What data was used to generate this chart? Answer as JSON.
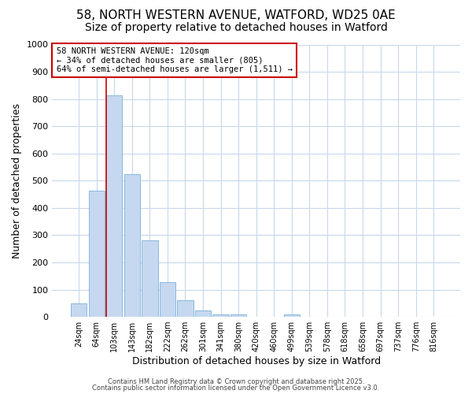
{
  "title_line1": "58, NORTH WESTERN AVENUE, WATFORD, WD25 0AE",
  "title_line2": "Size of property relative to detached houses in Watford",
  "xlabel": "Distribution of detached houses by size in Watford",
  "ylabel": "Number of detached properties",
  "bar_labels": [
    "24sqm",
    "64sqm",
    "103sqm",
    "143sqm",
    "182sqm",
    "222sqm",
    "262sqm",
    "301sqm",
    "341sqm",
    "380sqm",
    "420sqm",
    "460sqm",
    "499sqm",
    "539sqm",
    "578sqm",
    "618sqm",
    "658sqm",
    "697sqm",
    "737sqm",
    "776sqm",
    "816sqm"
  ],
  "bar_values": [
    50,
    462,
    813,
    525,
    280,
    128,
    60,
    22,
    10,
    10,
    0,
    0,
    10,
    0,
    0,
    0,
    0,
    0,
    0,
    0,
    0
  ],
  "bar_color": "#c5d8f0",
  "bar_edgecolor": "#7ab0d8",
  "vline_x": 2,
  "vline_color": "#cc0000",
  "ylim": [
    0,
    1000
  ],
  "yticks": [
    0,
    100,
    200,
    300,
    400,
    500,
    600,
    700,
    800,
    900,
    1000
  ],
  "annotation_title": "58 NORTH WESTERN AVENUE: 120sqm",
  "annotation_line2": "← 34% of detached houses are smaller (805)",
  "annotation_line3": "64% of semi-detached houses are larger (1,511) →",
  "annotation_color": "#cc0000",
  "background_color": "#ffffff",
  "plot_bg_color": "#ffffff",
  "grid_color": "#c8d8ec",
  "footer_line1": "Contains HM Land Registry data © Crown copyright and database right 2025.",
  "footer_line2": "Contains public sector information licensed under the Open Government Licence v3.0.",
  "title_fontsize": 11,
  "subtitle_fontsize": 10,
  "xlabel_fontsize": 9,
  "ylabel_fontsize": 9
}
